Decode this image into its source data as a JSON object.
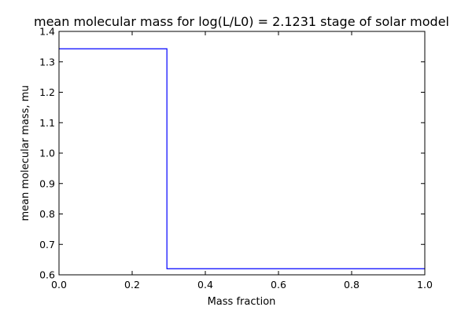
{
  "chart_data": {
    "type": "line",
    "title": "mean molecular mass for log(L/L0) = 2.1231 stage of solar model",
    "xlabel": "Mass fraction",
    "ylabel": "mean molecular mass, mu",
    "xlim": [
      0.0,
      1.0
    ],
    "ylim": [
      0.6,
      1.4
    ],
    "x_ticks": [
      "0.0",
      "0.2",
      "0.4",
      "0.6",
      "0.8",
      "1.0"
    ],
    "y_ticks": [
      "0.6",
      "0.7",
      "0.8",
      "0.9",
      "1.0",
      "1.1",
      "1.2",
      "1.3",
      "1.4"
    ],
    "grid": false,
    "legend": "none",
    "series": [
      {
        "color": "#0000ff",
        "x": [
          0.0,
          0.295,
          0.295,
          1.0
        ],
        "y": [
          1.343,
          1.343,
          0.62,
          0.62
        ]
      }
    ]
  }
}
